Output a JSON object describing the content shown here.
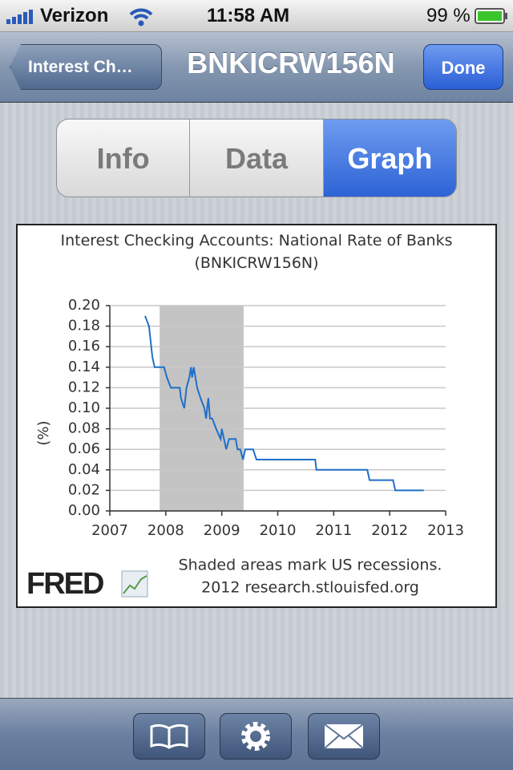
{
  "status_bar": {
    "carrier": "Verizon",
    "time": "11:58 AM",
    "battery": "99 %"
  },
  "nav_bar": {
    "back": "Interest Ch…",
    "title": "BNKICRW156N",
    "done": "Done"
  },
  "segments": [
    "Info",
    "Data",
    "Graph"
  ],
  "chart_data": {
    "type": "line",
    "title": "Interest Checking Accounts: National Rate of Banks (BNKICRW156N)",
    "y_label": "(%)",
    "x": [
      2007.63,
      2007.7,
      2007.76,
      2007.8,
      2007.97,
      2008.02,
      2008.09,
      2008.25,
      2008.27,
      2008.33,
      2008.37,
      2008.42,
      2008.45,
      2008.47,
      2008.5,
      2008.53,
      2008.56,
      2008.62,
      2008.69,
      2008.72,
      2008.76,
      2008.79,
      2008.83,
      2008.9,
      2008.98,
      2009.0,
      2009.08,
      2009.13,
      2009.25,
      2009.28,
      2009.33,
      2009.38,
      2009.42,
      2009.56,
      2009.62,
      2010.67,
      2010.69,
      2011.6,
      2011.64,
      2012.06,
      2012.1,
      2012.61
    ],
    "series": [
      {
        "name": "BNKICRW156N",
        "color": "#1f6fc8",
        "values": [
          0.19,
          0.18,
          0.15,
          0.14,
          0.14,
          0.13,
          0.12,
          0.12,
          0.11,
          0.1,
          0.12,
          0.13,
          0.14,
          0.13,
          0.14,
          0.13,
          0.12,
          0.11,
          0.1,
          0.09,
          0.11,
          0.09,
          0.09,
          0.08,
          0.07,
          0.08,
          0.06,
          0.07,
          0.07,
          0.06,
          0.06,
          0.05,
          0.06,
          0.06,
          0.05,
          0.05,
          0.04,
          0.04,
          0.03,
          0.03,
          0.02,
          0.02
        ]
      }
    ],
    "xlim": [
      2007,
      2013
    ],
    "xticks": [
      2007,
      2008,
      2009,
      2010,
      2011,
      2012,
      2013
    ],
    "ylim": [
      0,
      0.2
    ],
    "yticks": [
      {
        "value": 0,
        "label": "0.00"
      },
      {
        "value": 0.02,
        "label": "0.02"
      },
      {
        "value": 0.04,
        "label": "0.04"
      },
      {
        "value": 0.06,
        "label": "0.06"
      },
      {
        "value": 0.08,
        "label": "0.08"
      },
      {
        "value": 0.1,
        "label": "0.10"
      },
      {
        "value": 0.12,
        "label": "0.12"
      },
      {
        "value": 0.14,
        "label": "0.14"
      },
      {
        "value": 0.16,
        "label": "0.16"
      },
      {
        "value": 0.18,
        "label": "0.18"
      },
      {
        "value": 0.2,
        "label": "0.20"
      }
    ],
    "grid": true,
    "shaded_ranges": [
      [
        2007.89,
        2009.39
      ]
    ],
    "shade_color": "#c4c4c4",
    "logo": "FRED",
    "notes": [
      "Shaded areas mark US recessions.",
      "2012 research.stlouisfed.org"
    ]
  }
}
